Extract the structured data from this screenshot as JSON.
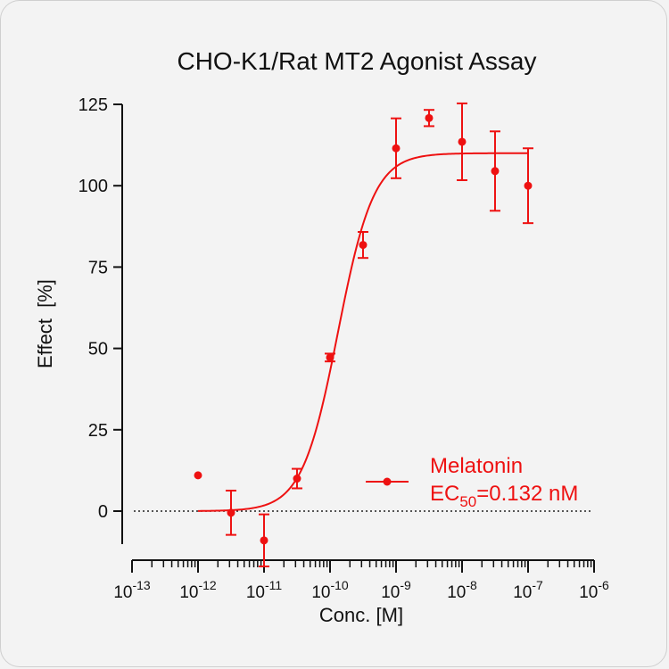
{
  "chart_data": {
    "type": "scatter",
    "title": "CHO-K1/Rat MT2 Agonist Assay",
    "xlabel": "Conc. [M]",
    "ylabel": "Effect  [%]",
    "x_scale": "log10",
    "xlim_exponent": [
      -13,
      -6
    ],
    "ylim": [
      -10,
      125
    ],
    "y_ticks": [
      0,
      25,
      50,
      75,
      100,
      125
    ],
    "x_tick_exponents": [
      -13,
      -12,
      -11,
      -10,
      -9,
      -8,
      -7,
      -6
    ],
    "reference_line_y": 0,
    "series": [
      {
        "name": "Melatonin",
        "color": "#ee1111",
        "points": [
          {
            "x": 1e-12,
            "y": 11,
            "err": 0
          },
          {
            "x": 3.16e-12,
            "y": -0.5,
            "err": 6.8
          },
          {
            "x": 1e-11,
            "y": -9,
            "err": 8
          },
          {
            "x": 3.16e-11,
            "y": 10,
            "err": 3
          },
          {
            "x": 1e-10,
            "y": 47.2,
            "err": 1.2
          },
          {
            "x": 3.16e-10,
            "y": 81.8,
            "err": 4
          },
          {
            "x": 1e-09,
            "y": 111.5,
            "err": 9.2
          },
          {
            "x": 3.16e-09,
            "y": 120.8,
            "err": 2.5
          },
          {
            "x": 1e-08,
            "y": 113.5,
            "err": 11.8
          },
          {
            "x": 3.16e-08,
            "y": 104.5,
            "err": 12.2
          },
          {
            "x": 1e-07,
            "y": 100,
            "err": 11.5
          }
        ],
        "fit": {
          "bottom": 0,
          "top": 110,
          "ec50": 1.32e-10,
          "hill": 1.6,
          "x_start": 1e-12,
          "x_end": 1e-07
        }
      }
    ],
    "legend": {
      "label": "Melatonin",
      "ec50_prefix": "EC",
      "ec50_sub": "50",
      "ec50_value": "=0.132 nM",
      "position": "lower-right"
    }
  }
}
